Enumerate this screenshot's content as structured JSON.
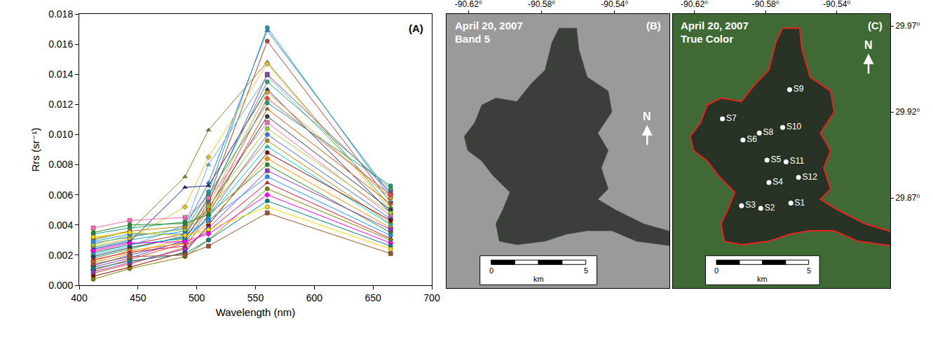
{
  "chart_data": [
    {
      "type": "line",
      "panel_label": "(A)",
      "x_label": "Wavelength (nm)",
      "y_label": "Rrs (sr⁻¹)",
      "x": [
        412,
        443,
        490,
        510,
        560,
        665
      ],
      "xlim": [
        400,
        700
      ],
      "xticks": [
        400,
        450,
        500,
        550,
        600,
        650,
        700
      ],
      "ylim": [
        0,
        0.018
      ],
      "yticks": [
        {
          "value": 0,
          "label": "0.000"
        },
        {
          "value": 0.002,
          "label": "0.002"
        },
        {
          "value": 0.004,
          "label": "0.004"
        },
        {
          "value": 0.006,
          "label": "0.006"
        },
        {
          "value": 0.008,
          "label": "0.008"
        },
        {
          "value": 0.01,
          "label": "0.010"
        },
        {
          "value": 0.012,
          "label": "0.012"
        },
        {
          "value": 0.014,
          "label": "0.014"
        },
        {
          "value": 0.016,
          "label": "0.016"
        },
        {
          "value": 0.018,
          "label": "0.018"
        }
      ],
      "grid": false,
      "series": [
        {
          "color": "#1f9fbf",
          "marker": "circle",
          "values": [
            0.0025,
            0.003,
            0.0036,
            0.0062,
            0.0171,
            0.0058
          ]
        },
        {
          "color": "#2e86c1",
          "marker": "triangle-up",
          "values": [
            0.0028,
            0.0032,
            0.0038,
            0.0068,
            0.0169,
            0.006
          ]
        },
        {
          "color": "#c0392b",
          "marker": "circle",
          "values": [
            0.0022,
            0.0027,
            0.0034,
            0.0058,
            0.0162,
            0.0055
          ]
        },
        {
          "color": "#6b8e23",
          "marker": "triangle-up",
          "values": [
            0.003,
            0.0036,
            0.0072,
            0.0103,
            0.0148,
            0.0052
          ]
        },
        {
          "color": "#e6c229",
          "marker": "diamond",
          "values": [
            0.0026,
            0.0031,
            0.0052,
            0.0085,
            0.0147,
            0.005
          ]
        },
        {
          "color": "#1a237e",
          "marker": "triangle-up",
          "values": [
            0.0024,
            0.0029,
            0.0065,
            0.0066,
            0.013,
            0.0048
          ]
        },
        {
          "color": "#5dade2",
          "marker": "triangle-up",
          "values": [
            0.002,
            0.0026,
            0.004,
            0.008,
            0.0139,
            0.0056
          ]
        },
        {
          "color": "#8e44ad",
          "marker": "square",
          "values": [
            0.0012,
            0.0018,
            0.003,
            0.0055,
            0.014,
            0.0062
          ]
        },
        {
          "color": "#27ae60",
          "marker": "circle",
          "values": [
            0.0018,
            0.0024,
            0.0033,
            0.0057,
            0.0135,
            0.0064
          ]
        },
        {
          "color": "#f39c12",
          "marker": "circle",
          "values": [
            0.0015,
            0.0021,
            0.0031,
            0.0053,
            0.0128,
            0.0058
          ]
        },
        {
          "color": "#e74c3c",
          "marker": "diamond",
          "values": [
            0.001,
            0.0017,
            0.0028,
            0.005,
            0.0124,
            0.006
          ]
        },
        {
          "color": "#16a085",
          "marker": "circle",
          "values": [
            0.0034,
            0.0038,
            0.0042,
            0.006,
            0.0121,
            0.0066
          ]
        },
        {
          "color": "#d35400",
          "marker": "triangle-up",
          "values": [
            0.0008,
            0.0014,
            0.0025,
            0.0047,
            0.0117,
            0.0054
          ]
        },
        {
          "color": "#2c3e50",
          "marker": "circle",
          "values": [
            0.0019,
            0.0025,
            0.0032,
            0.0051,
            0.0112,
            0.005
          ]
        },
        {
          "color": "#ff69b4",
          "marker": "square",
          "values": [
            0.0038,
            0.0043,
            0.0045,
            0.0058,
            0.0108,
            0.0046
          ]
        },
        {
          "color": "#9acd32",
          "marker": "circle",
          "values": [
            0.0027,
            0.0033,
            0.0037,
            0.0052,
            0.0104,
            0.0048
          ]
        },
        {
          "color": "#4169e1",
          "marker": "diamond",
          "values": [
            0.0013,
            0.002,
            0.0029,
            0.0046,
            0.01,
            0.0044
          ]
        },
        {
          "color": "#b8860b",
          "marker": "circle",
          "values": [
            0.0031,
            0.0036,
            0.0039,
            0.005,
            0.0096,
            0.0041
          ]
        },
        {
          "color": "#00ced1",
          "marker": "triangle-up",
          "values": [
            0.0021,
            0.0027,
            0.0031,
            0.0045,
            0.0092,
            0.004
          ]
        },
        {
          "color": "#8b0000",
          "marker": "circle",
          "values": [
            0.0006,
            0.0012,
            0.0022,
            0.004,
            0.0088,
            0.0043
          ]
        },
        {
          "color": "#ff8c00",
          "marker": "diamond",
          "values": [
            0.0016,
            0.0023,
            0.0028,
            0.0042,
            0.0084,
            0.0038
          ]
        },
        {
          "color": "#228b22",
          "marker": "circle",
          "values": [
            0.0035,
            0.004,
            0.0041,
            0.0047,
            0.008,
            0.0035
          ]
        },
        {
          "color": "#9932cc",
          "marker": "square",
          "values": [
            0.0009,
            0.0015,
            0.0024,
            0.0038,
            0.0076,
            0.0037
          ]
        },
        {
          "color": "#1e90ff",
          "marker": "circle",
          "values": [
            0.0029,
            0.0034,
            0.0034,
            0.0043,
            0.0072,
            0.0033
          ]
        },
        {
          "color": "#dc143c",
          "marker": "triangle-up",
          "values": [
            0.0017,
            0.0022,
            0.0026,
            0.0036,
            0.0068,
            0.0031
          ]
        },
        {
          "color": "#808000",
          "marker": "circle",
          "values": [
            0.0004,
            0.0011,
            0.0019,
            0.003,
            0.0064,
            0.003
          ]
        },
        {
          "color": "#ff00ff",
          "marker": "diamond",
          "values": [
            0.0023,
            0.0028,
            0.0029,
            0.0034,
            0.006,
            0.0028
          ]
        },
        {
          "color": "#008080",
          "marker": "circle",
          "values": [
            0.0011,
            0.0016,
            0.0021,
            0.003,
            0.0056,
            0.0026
          ]
        },
        {
          "color": "#ffd700",
          "marker": "circle",
          "values": [
            0.0032,
            0.0035,
            0.0033,
            0.0037,
            0.0052,
            0.0024
          ]
        },
        {
          "color": "#a0522d",
          "marker": "square",
          "values": [
            0.0014,
            0.0019,
            0.002,
            0.0026,
            0.0048,
            0.0021
          ]
        }
      ]
    },
    {
      "type": "map",
      "panel_label": "(B)",
      "title": "April 20, 2007",
      "subtitle": "Band 5",
      "north": "N",
      "scale_bar": {
        "ticks": [
          0,
          5
        ],
        "unit": "km"
      },
      "xlim": [
        -90.632,
        -90.51
      ],
      "xticks": [
        {
          "value": -90.62,
          "label": "-90.62⁰"
        },
        {
          "value": -90.58,
          "label": "-90.58⁰"
        },
        {
          "value": -90.54,
          "label": "-90.54⁰"
        }
      ],
      "ylim": [
        29.8176,
        29.977
      ],
      "tick_labels": "x",
      "lake_outline": {
        "lon": [
          -90.5704,
          -90.5608,
          -90.5596,
          -90.555,
          -90.5435,
          -90.5415,
          -90.5492,
          -90.5435,
          -90.5473,
          -90.5435,
          -90.5492,
          -90.5396,
          -90.5242,
          -90.508,
          -90.508,
          -90.5281,
          -90.5415,
          -90.555,
          -90.5665,
          -90.5781,
          -90.5935,
          -90.6031,
          -90.605,
          -90.6012,
          -90.5973,
          -90.6069,
          -90.6127,
          -90.6204,
          -90.6223,
          -90.6165,
          -90.6127,
          -90.605,
          -90.5935,
          -90.5858,
          -90.5781,
          -90.5742
        ],
        "lat": [
          29.9688,
          29.9688,
          29.9566,
          29.9403,
          29.9322,
          29.92,
          29.9078,
          29.8976,
          29.8875,
          29.8753,
          29.8692,
          29.8631,
          29.855,
          29.8501,
          29.842,
          29.8448,
          29.8509,
          29.8509,
          29.8489,
          29.8448,
          29.8428,
          29.8448,
          29.855,
          29.8631,
          29.8733,
          29.8834,
          29.8915,
          29.8976,
          29.9058,
          29.9139,
          29.9241,
          29.9281,
          29.9261,
          29.9363,
          29.9444,
          29.9607
        ]
      }
    },
    {
      "type": "map",
      "panel_label": "(C)",
      "title": "April 20, 2007",
      "subtitle": "True Color",
      "north": "N",
      "scale_bar": {
        "ticks": [
          0,
          5
        ],
        "unit": "km"
      },
      "color": "#e8231f",
      "xlim": [
        -90.632,
        -90.51
      ],
      "xticks": [
        {
          "value": -90.62,
          "label": "-90.62⁰"
        },
        {
          "value": -90.58,
          "label": "-90.58⁰"
        },
        {
          "value": -90.54,
          "label": "-90.54⁰"
        }
      ],
      "ylim": [
        29.8176,
        29.977
      ],
      "yticks": [
        {
          "value": 29.87,
          "label": "29.87⁰"
        },
        {
          "value": 29.92,
          "label": "29.92⁰"
        },
        {
          "value": 29.97,
          "label": "29.97⁰"
        }
      ],
      "lake_outline": {
        "lon": [
          -90.5704,
          -90.5608,
          -90.5596,
          -90.555,
          -90.5435,
          -90.5415,
          -90.5492,
          -90.5435,
          -90.5473,
          -90.5435,
          -90.5492,
          -90.5396,
          -90.5242,
          -90.508,
          -90.508,
          -90.5281,
          -90.5415,
          -90.555,
          -90.5665,
          -90.5781,
          -90.5935,
          -90.6031,
          -90.605,
          -90.6012,
          -90.5973,
          -90.6069,
          -90.6127,
          -90.6204,
          -90.6223,
          -90.6165,
          -90.6127,
          -90.605,
          -90.5935,
          -90.5858,
          -90.5781,
          -90.5742
        ],
        "lat": [
          29.9688,
          29.9688,
          29.9566,
          29.9403,
          29.9322,
          29.92,
          29.9078,
          29.8976,
          29.8875,
          29.8753,
          29.8692,
          29.8631,
          29.855,
          29.8501,
          29.842,
          29.8448,
          29.8509,
          29.8509,
          29.8489,
          29.8448,
          29.8428,
          29.8448,
          29.855,
          29.8631,
          29.8733,
          29.8834,
          29.8915,
          29.8976,
          29.9058,
          29.9139,
          29.9241,
          29.9281,
          29.9261,
          29.9363,
          29.9444,
          29.9607
        ]
      },
      "stations": [
        {
          "name": "S1",
          "lon": -90.5658,
          "lat": 29.867
        },
        {
          "name": "S2",
          "lon": -90.5827,
          "lat": 29.864
        },
        {
          "name": "S3",
          "lon": -90.5935,
          "lat": 29.8655
        },
        {
          "name": "S4",
          "lon": -90.5781,
          "lat": 29.879
        },
        {
          "name": "S5",
          "lon": -90.5792,
          "lat": 29.892
        },
        {
          "name": "S6",
          "lon": -90.5927,
          "lat": 29.9037
        },
        {
          "name": "S7",
          "lon": -90.6042,
          "lat": 29.916
        },
        {
          "name": "S8",
          "lon": -90.5835,
          "lat": 29.9078
        },
        {
          "name": "S9",
          "lon": -90.5665,
          "lat": 29.933
        },
        {
          "name": "S10",
          "lon": -90.5704,
          "lat": 29.911
        },
        {
          "name": "S11",
          "lon": -90.5685,
          "lat": 29.891
        },
        {
          "name": "S12",
          "lon": -90.5615,
          "lat": 29.882
        }
      ]
    }
  ]
}
